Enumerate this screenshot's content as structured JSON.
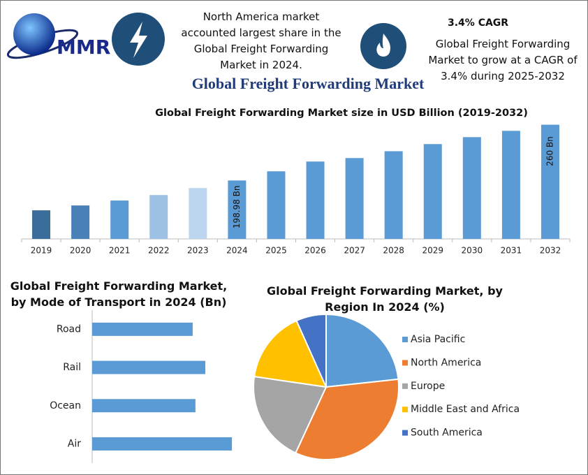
{
  "header": {
    "logo": "MMR",
    "note": "North America market accounted largest share in the Global Freight Forwarding Market in 2024.",
    "cagr_title": "3.4% CAGR",
    "cagr_text": "Global Freight Forwarding Market to grow at a CAGR of 3.4% during 2025-2032",
    "title": "Global Freight Forwarding Market"
  },
  "chart_data": [
    {
      "type": "bar",
      "title": "Global Freight Forwarding Market size in USD Billion (2019-2032)",
      "categories": [
        "2019",
        "2020",
        "2021",
        "2022",
        "2023",
        "2024",
        "2025",
        "2026",
        "2027",
        "2028",
        "2029",
        "2030",
        "2031",
        "2032"
      ],
      "values": [
        166.3,
        171.6,
        177,
        183,
        190.7,
        198.98,
        209,
        219.7,
        223.5,
        231,
        238.8,
        246.4,
        253.3,
        260
      ],
      "value_labels": [
        null,
        null,
        null,
        null,
        null,
        "198.98 Bn",
        null,
        null,
        null,
        null,
        null,
        null,
        null,
        "260 Bn"
      ],
      "colors": [
        "#3b6d9b",
        "#4a80b8",
        "#5b9bd5",
        "#9dc0e5",
        "#bdd6ef",
        "#5b9bd5",
        "#5b9bd5",
        "#5b9bd5",
        "#5b9bd5",
        "#5b9bd5",
        "#5b9bd5",
        "#5b9bd5",
        "#5b9bd5",
        "#5b9bd5"
      ],
      "ylim": [
        135,
        265
      ],
      "grid": false
    },
    {
      "type": "barh",
      "title": "Global Freight Forwarding Market, by Mode of Transport in 2024 (Bn)",
      "categories": [
        "Road",
        "Rail",
        "Ocean",
        "Air"
      ],
      "values": [
        43.8,
        49.3,
        45.0,
        60.9
      ],
      "color": "#5b9bd5",
      "xlim": [
        0,
        70
      ]
    },
    {
      "type": "pie",
      "title": "Global Freight Forwarding Market, by Region In 2024 (%)",
      "categories": [
        "Asia Pacific",
        "North America",
        "Europe",
        "Middle East and Africa",
        "South America"
      ],
      "values": [
        23.3,
        33.6,
        20.4,
        16,
        6.7
      ],
      "colors": [
        "#5b9bd5",
        "#ed7d31",
        "#a5a5a5",
        "#ffc000",
        "#4472c4"
      ],
      "legend": "right"
    }
  ]
}
